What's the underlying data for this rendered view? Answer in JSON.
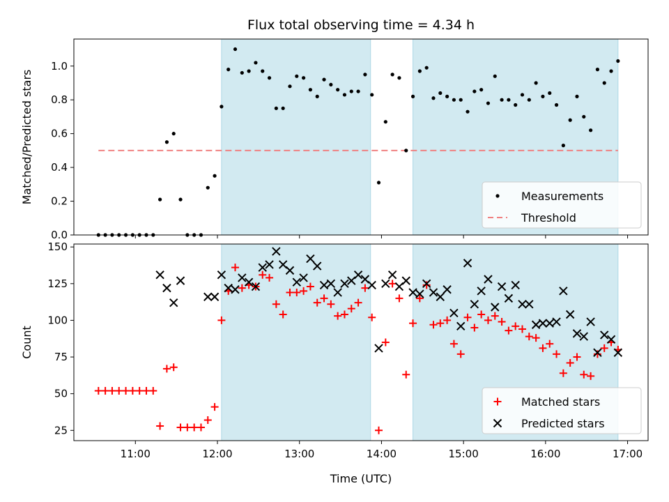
{
  "title": "Flux total observing time = 4.34 h",
  "chart_data": {
    "type": "scatter",
    "title": "Flux total observing time = 4.34 h",
    "xlabel": "Time (UTC)",
    "xlim": [
      "10:15",
      "17:15"
    ],
    "x_ticks": [
      "11:00",
      "12:00",
      "13:00",
      "14:00",
      "15:00",
      "16:00",
      "17:00"
    ],
    "shaded_intervals": [
      [
        "12:03",
        "13:52"
      ],
      [
        "14:23",
        "16:53"
      ]
    ],
    "shade_color": "#add8e6",
    "panels": [
      {
        "id": "ratio",
        "ylabel": "Matched/Predicted stars",
        "ylim": [
          0,
          1.16
        ],
        "y_ticks": [
          "0.0",
          "0.2",
          "0.4",
          "0.6",
          "0.8",
          "1.0"
        ],
        "threshold": {
          "name": "Threshold",
          "value": 0.5,
          "x_range": [
            "10:33",
            "16:53"
          ],
          "color": "#f08080"
        },
        "series": [
          {
            "name": "Measurements",
            "color": "#000000",
            "marker": "dot",
            "points": [
              [
                "10:33",
                0
              ],
              [
                "10:38",
                0
              ],
              [
                "10:43",
                0
              ],
              [
                "10:48",
                0
              ],
              [
                "10:53",
                0
              ],
              [
                "10:58",
                0
              ],
              [
                "11:03",
                0
              ],
              [
                "11:08",
                0
              ],
              [
                "11:13",
                0
              ],
              [
                "11:18",
                0.21
              ],
              [
                "11:23",
                0.55
              ],
              [
                "11:28",
                0.6
              ],
              [
                "11:33",
                0.21
              ],
              [
                "11:38",
                0
              ],
              [
                "11:43",
                0
              ],
              [
                "11:48",
                0
              ],
              [
                "11:53",
                0.28
              ],
              [
                "11:58",
                0.35
              ],
              [
                "12:03",
                0.76
              ],
              [
                "12:08",
                0.98
              ],
              [
                "12:13",
                1.1
              ],
              [
                "12:18",
                0.96
              ],
              [
                "12:23",
                0.97
              ],
              [
                "12:28",
                1.02
              ],
              [
                "12:33",
                0.97
              ],
              [
                "12:38",
                0.93
              ],
              [
                "12:43",
                0.75
              ],
              [
                "12:48",
                0.75
              ],
              [
                "12:53",
                0.88
              ],
              [
                "12:58",
                0.94
              ],
              [
                "13:03",
                0.93
              ],
              [
                "13:08",
                0.86
              ],
              [
                "13:13",
                0.82
              ],
              [
                "13:18",
                0.92
              ],
              [
                "13:23",
                0.89
              ],
              [
                "13:28",
                0.86
              ],
              [
                "13:33",
                0.83
              ],
              [
                "13:38",
                0.85
              ],
              [
                "13:43",
                0.85
              ],
              [
                "13:48",
                0.95
              ],
              [
                "13:53",
                0.83
              ],
              [
                "13:58",
                0.31
              ],
              [
                "14:03",
                0.67
              ],
              [
                "14:08",
                0.95
              ],
              [
                "14:13",
                0.93
              ],
              [
                "14:18",
                0.5
              ],
              [
                "14:23",
                0.82
              ],
              [
                "14:28",
                0.97
              ],
              [
                "14:33",
                0.99
              ],
              [
                "14:38",
                0.81
              ],
              [
                "14:43",
                0.84
              ],
              [
                "14:48",
                0.82
              ],
              [
                "14:53",
                0.8
              ],
              [
                "14:58",
                0.8
              ],
              [
                "15:03",
                0.73
              ],
              [
                "15:08",
                0.85
              ],
              [
                "15:13",
                0.86
              ],
              [
                "15:18",
                0.78
              ],
              [
                "15:23",
                0.94
              ],
              [
                "15:28",
                0.8
              ],
              [
                "15:33",
                0.8
              ],
              [
                "15:38",
                0.77
              ],
              [
                "15:43",
                0.83
              ],
              [
                "15:48",
                0.8
              ],
              [
                "15:53",
                0.9
              ],
              [
                "15:58",
                0.82
              ],
              [
                "16:03",
                0.84
              ],
              [
                "16:08",
                0.77
              ],
              [
                "16:13",
                0.53
              ],
              [
                "16:18",
                0.68
              ],
              [
                "16:23",
                0.82
              ],
              [
                "16:28",
                0.7
              ],
              [
                "16:33",
                0.62
              ],
              [
                "16:38",
                0.98
              ],
              [
                "16:43",
                0.9
              ],
              [
                "16:48",
                0.97
              ],
              [
                "16:53",
                1.03
              ]
            ]
          }
        ],
        "legend": {
          "position": "bottom-right",
          "items": [
            {
              "label": "Measurements",
              "symbol": "dot",
              "color": "#000000"
            },
            {
              "label": "Threshold",
              "symbol": "dash",
              "color": "#f08080"
            }
          ]
        }
      },
      {
        "id": "count",
        "ylabel": "Count",
        "ylim": [
          18,
          152
        ],
        "y_ticks": [
          "25",
          "50",
          "75",
          "100",
          "125",
          "150"
        ],
        "series": [
          {
            "name": "Matched stars",
            "color": "#ff0000",
            "marker": "plus",
            "points": [
              [
                "10:33",
                52
              ],
              [
                "10:38",
                52
              ],
              [
                "10:43",
                52
              ],
              [
                "10:48",
                52
              ],
              [
                "10:53",
                52
              ],
              [
                "10:58",
                52
              ],
              [
                "11:03",
                52
              ],
              [
                "11:08",
                52
              ],
              [
                "11:13",
                52
              ],
              [
                "11:18",
                28
              ],
              [
                "11:23",
                67
              ],
              [
                "11:28",
                68
              ],
              [
                "11:33",
                27
              ],
              [
                "11:38",
                27
              ],
              [
                "11:43",
                27
              ],
              [
                "11:48",
                27
              ],
              [
                "11:53",
                32
              ],
              [
                "11:58",
                41
              ],
              [
                "12:03",
                100
              ],
              [
                "12:08",
                120
              ],
              [
                "12:13",
                136
              ],
              [
                "12:18",
                122
              ],
              [
                "12:23",
                124
              ],
              [
                "12:28",
                123
              ],
              [
                "12:33",
                131
              ],
              [
                "12:38",
                129
              ],
              [
                "12:43",
                111
              ],
              [
                "12:48",
                104
              ],
              [
                "12:53",
                119
              ],
              [
                "12:58",
                119
              ],
              [
                "13:03",
                120
              ],
              [
                "13:08",
                123
              ],
              [
                "13:13",
                112
              ],
              [
                "13:18",
                115
              ],
              [
                "13:23",
                111
              ],
              [
                "13:28",
                103
              ],
              [
                "13:33",
                104
              ],
              [
                "13:38",
                108
              ],
              [
                "13:43",
                112
              ],
              [
                "13:48",
                122
              ],
              [
                "13:53",
                102
              ],
              [
                "13:58",
                25
              ],
              [
                "14:03",
                85
              ],
              [
                "14:08",
                125
              ],
              [
                "14:13",
                115
              ],
              [
                "14:18",
                63
              ],
              [
                "14:23",
                98
              ],
              [
                "14:28",
                115
              ],
              [
                "14:33",
                124
              ],
              [
                "14:38",
                97
              ],
              [
                "14:43",
                98
              ],
              [
                "14:48",
                100
              ],
              [
                "14:53",
                84
              ],
              [
                "14:58",
                77
              ],
              [
                "15:03",
                102
              ],
              [
                "15:08",
                95
              ],
              [
                "15:13",
                104
              ],
              [
                "15:18",
                100
              ],
              [
                "15:23",
                103
              ],
              [
                "15:28",
                99
              ],
              [
                "15:33",
                93
              ],
              [
                "15:38",
                96
              ],
              [
                "15:43",
                94
              ],
              [
                "15:48",
                89
              ],
              [
                "15:53",
                88
              ],
              [
                "15:58",
                81
              ],
              [
                "16:03",
                84
              ],
              [
                "16:08",
                77
              ],
              [
                "16:13",
                64
              ],
              [
                "16:18",
                71
              ],
              [
                "16:23",
                75
              ],
              [
                "16:28",
                63
              ],
              [
                "16:33",
                62
              ],
              [
                "16:38",
                77
              ],
              [
                "16:43",
                81
              ],
              [
                "16:48",
                85
              ],
              [
                "16:53",
                80
              ]
            ]
          },
          {
            "name": "Predicted stars",
            "color": "#000000",
            "marker": "cross",
            "points": [
              [
                "11:18",
                131
              ],
              [
                "11:23",
                122
              ],
              [
                "11:28",
                112
              ],
              [
                "11:33",
                127
              ],
              [
                "11:53",
                116
              ],
              [
                "11:58",
                116
              ],
              [
                "12:03",
                131
              ],
              [
                "12:08",
                122
              ],
              [
                "12:13",
                121
              ],
              [
                "12:18",
                129
              ],
              [
                "12:23",
                126
              ],
              [
                "12:28",
                123
              ],
              [
                "12:33",
                136
              ],
              [
                "12:38",
                138
              ],
              [
                "12:43",
                147
              ],
              [
                "12:48",
                138
              ],
              [
                "12:53",
                134
              ],
              [
                "12:58",
                126
              ],
              [
                "13:03",
                129
              ],
              [
                "13:08",
                142
              ],
              [
                "13:13",
                137
              ],
              [
                "13:18",
                124
              ],
              [
                "13:23",
                125
              ],
              [
                "13:28",
                119
              ],
              [
                "13:33",
                125
              ],
              [
                "13:38",
                127
              ],
              [
                "13:43",
                131
              ],
              [
                "13:48",
                128
              ],
              [
                "13:53",
                124
              ],
              [
                "13:58",
                81
              ],
              [
                "14:03",
                125
              ],
              [
                "14:08",
                131
              ],
              [
                "14:13",
                123
              ],
              [
                "14:18",
                127
              ],
              [
                "14:23",
                119
              ],
              [
                "14:28",
                118
              ],
              [
                "14:33",
                125
              ],
              [
                "14:38",
                119
              ],
              [
                "14:43",
                116
              ],
              [
                "14:48",
                121
              ],
              [
                "14:53",
                105
              ],
              [
                "14:58",
                96
              ],
              [
                "15:03",
                139
              ],
              [
                "15:08",
                111
              ],
              [
                "15:13",
                120
              ],
              [
                "15:18",
                128
              ],
              [
                "15:23",
                109
              ],
              [
                "15:28",
                123
              ],
              [
                "15:33",
                115
              ],
              [
                "15:38",
                124
              ],
              [
                "15:43",
                111
              ],
              [
                "15:48",
                111
              ],
              [
                "15:53",
                97
              ],
              [
                "15:58",
                98
              ],
              [
                "16:03",
                98
              ],
              [
                "16:08",
                99
              ],
              [
                "16:13",
                120
              ],
              [
                "16:18",
                104
              ],
              [
                "16:23",
                91
              ],
              [
                "16:28",
                89
              ],
              [
                "16:33",
                99
              ],
              [
                "16:38",
                78
              ],
              [
                "16:43",
                90
              ],
              [
                "16:48",
                87
              ],
              [
                "16:53",
                78
              ]
            ]
          }
        ],
        "legend": {
          "position": "bottom-right",
          "items": [
            {
              "label": "Matched stars",
              "symbol": "plus",
              "color": "#ff0000"
            },
            {
              "label": "Predicted stars",
              "symbol": "cross",
              "color": "#000000"
            }
          ]
        }
      }
    ]
  }
}
